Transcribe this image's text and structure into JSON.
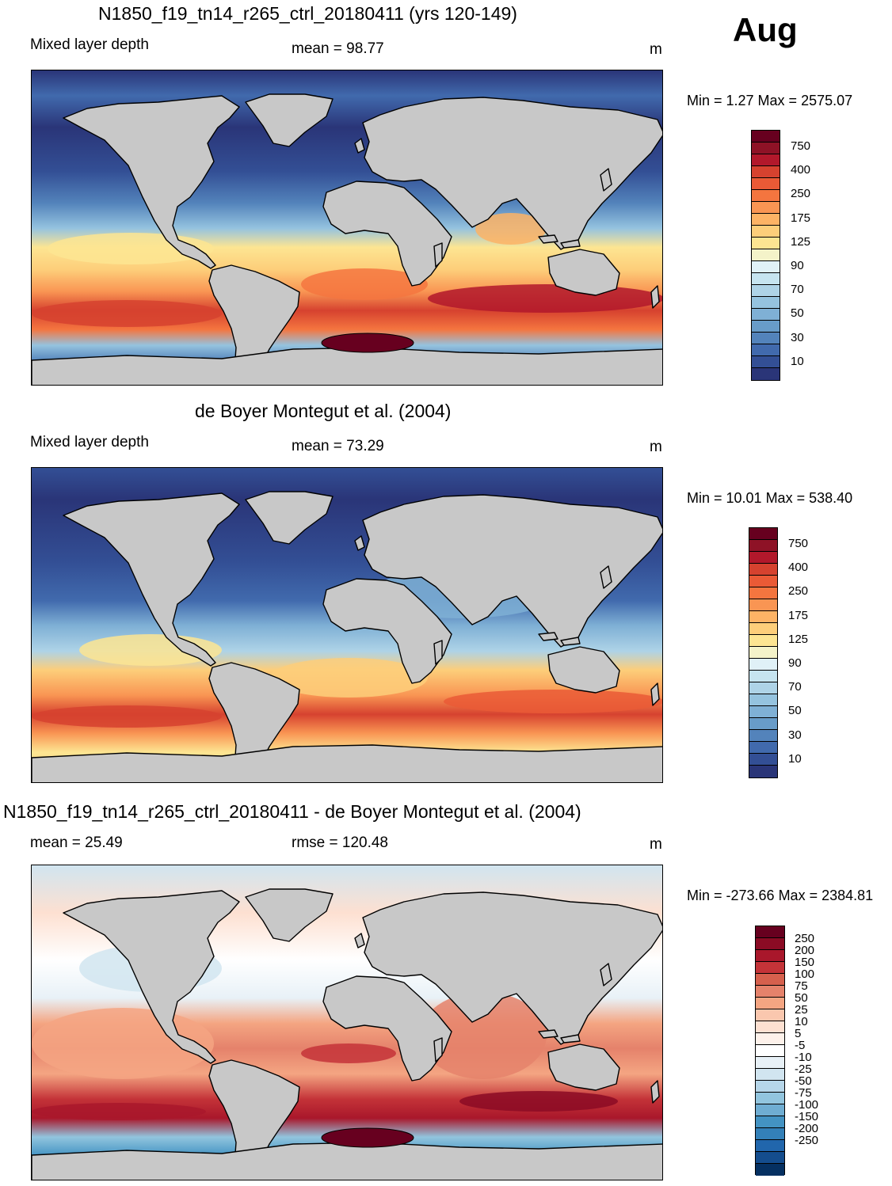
{
  "month": "Aug",
  "panels": [
    {
      "title": "N1850_f19_tn14_r265_ctrl_20180411 (yrs 120-149)",
      "left_label": "Mixed layer depth",
      "center_label": "mean =  98.77",
      "units": "m",
      "minmax": "Min =   1.27 Max = 2575.07",
      "field": "model"
    },
    {
      "title": "de Boyer Montegut et al. (2004)",
      "left_label": "Mixed layer depth",
      "center_label": "mean =  73.29",
      "units": "m",
      "minmax": "Min =  10.01 Max = 538.40",
      "field": "obs"
    },
    {
      "title": "N1850_f19_tn14_r265_ctrl_20180411 - de Boyer Montegut et al. (2004)",
      "left_label": "mean =  25.49",
      "center_label": "rmse = 120.48",
      "units": "m",
      "minmax": "Min = -273.66 Max = 2384.81",
      "field": "diff"
    }
  ],
  "colorbar_seq": {
    "colors": [
      "#ffffff",
      "#67001f",
      "#8e1226",
      "#b2182b",
      "#d6422f",
      "#ea5a36",
      "#f4753f",
      "#f99553",
      "#fdb365",
      "#fdce7a",
      "#fde592",
      "#f4f3c9",
      "#e0f1f7",
      "#c6e4f0",
      "#aed3e7",
      "#95c3df",
      "#7fb0d5",
      "#689cc9",
      "#5383bb",
      "#416aad",
      "#334f95",
      "#2a3578"
    ],
    "labels": [
      "750",
      "400",
      "250",
      "175",
      "125",
      "90",
      "70",
      "50",
      "30",
      "10"
    ]
  },
  "colorbar_div": {
    "colors": [
      "#67001f",
      "#8b0b24",
      "#a9172b",
      "#c43338",
      "#d6604d",
      "#e5826b",
      "#f4a582",
      "#fac7ae",
      "#fde0d1",
      "#fdf1ea",
      "#ffffff",
      "#e8f1f7",
      "#d1e5f0",
      "#b6d6e9",
      "#92c5de",
      "#6fadd2",
      "#4393c3",
      "#3380b8",
      "#2166ac",
      "#144d8e",
      "#053061"
    ],
    "labels": [
      "250",
      "200",
      "150",
      "100",
      "75",
      "50",
      "25",
      "10",
      "5",
      "-5",
      "-10",
      "-25",
      "-50",
      "-75",
      "-100",
      "-150",
      "-200",
      "-250"
    ]
  }
}
